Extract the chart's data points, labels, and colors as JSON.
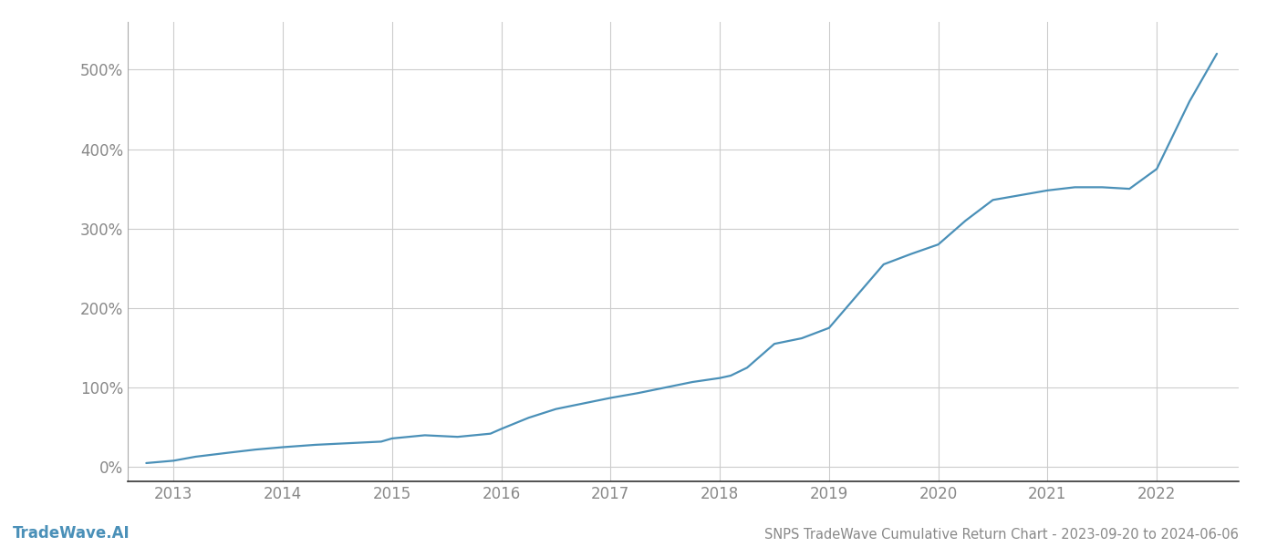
{
  "title": "SNPS TradeWave Cumulative Return Chart - 2023-09-20 to 2024-06-06",
  "watermark": "TradeWave.AI",
  "line_color": "#4a90b8",
  "background_color": "#ffffff",
  "grid_color": "#cccccc",
  "x_years": [
    2013,
    2014,
    2015,
    2016,
    2017,
    2018,
    2019,
    2020,
    2021,
    2022
  ],
  "y_ticks": [
    0,
    100,
    200,
    300,
    400,
    500
  ],
  "xlim_start": 2012.58,
  "xlim_end": 2022.75,
  "ylim_bottom": -18,
  "ylim_top": 560,
  "data_x": [
    2012.75,
    2013.0,
    2013.2,
    2013.5,
    2013.75,
    2014.0,
    2014.3,
    2014.6,
    2014.9,
    2015.0,
    2015.3,
    2015.6,
    2015.9,
    2016.0,
    2016.25,
    2016.5,
    2016.75,
    2017.0,
    2017.25,
    2017.5,
    2017.75,
    2018.0,
    2018.1,
    2018.25,
    2018.5,
    2018.75,
    2019.0,
    2019.25,
    2019.5,
    2019.75,
    2020.0,
    2020.25,
    2020.5,
    2020.75,
    2021.0,
    2021.25,
    2021.5,
    2021.75,
    2022.0,
    2022.3,
    2022.55
  ],
  "data_y": [
    5,
    8,
    13,
    18,
    22,
    25,
    28,
    30,
    32,
    36,
    40,
    38,
    42,
    48,
    62,
    73,
    80,
    87,
    93,
    100,
    107,
    112,
    115,
    125,
    155,
    162,
    175,
    215,
    255,
    268,
    280,
    310,
    336,
    342,
    348,
    352,
    352,
    350,
    375,
    460,
    520
  ],
  "title_fontsize": 10.5,
  "watermark_fontsize": 12,
  "tick_fontsize": 12,
  "line_width": 1.6
}
